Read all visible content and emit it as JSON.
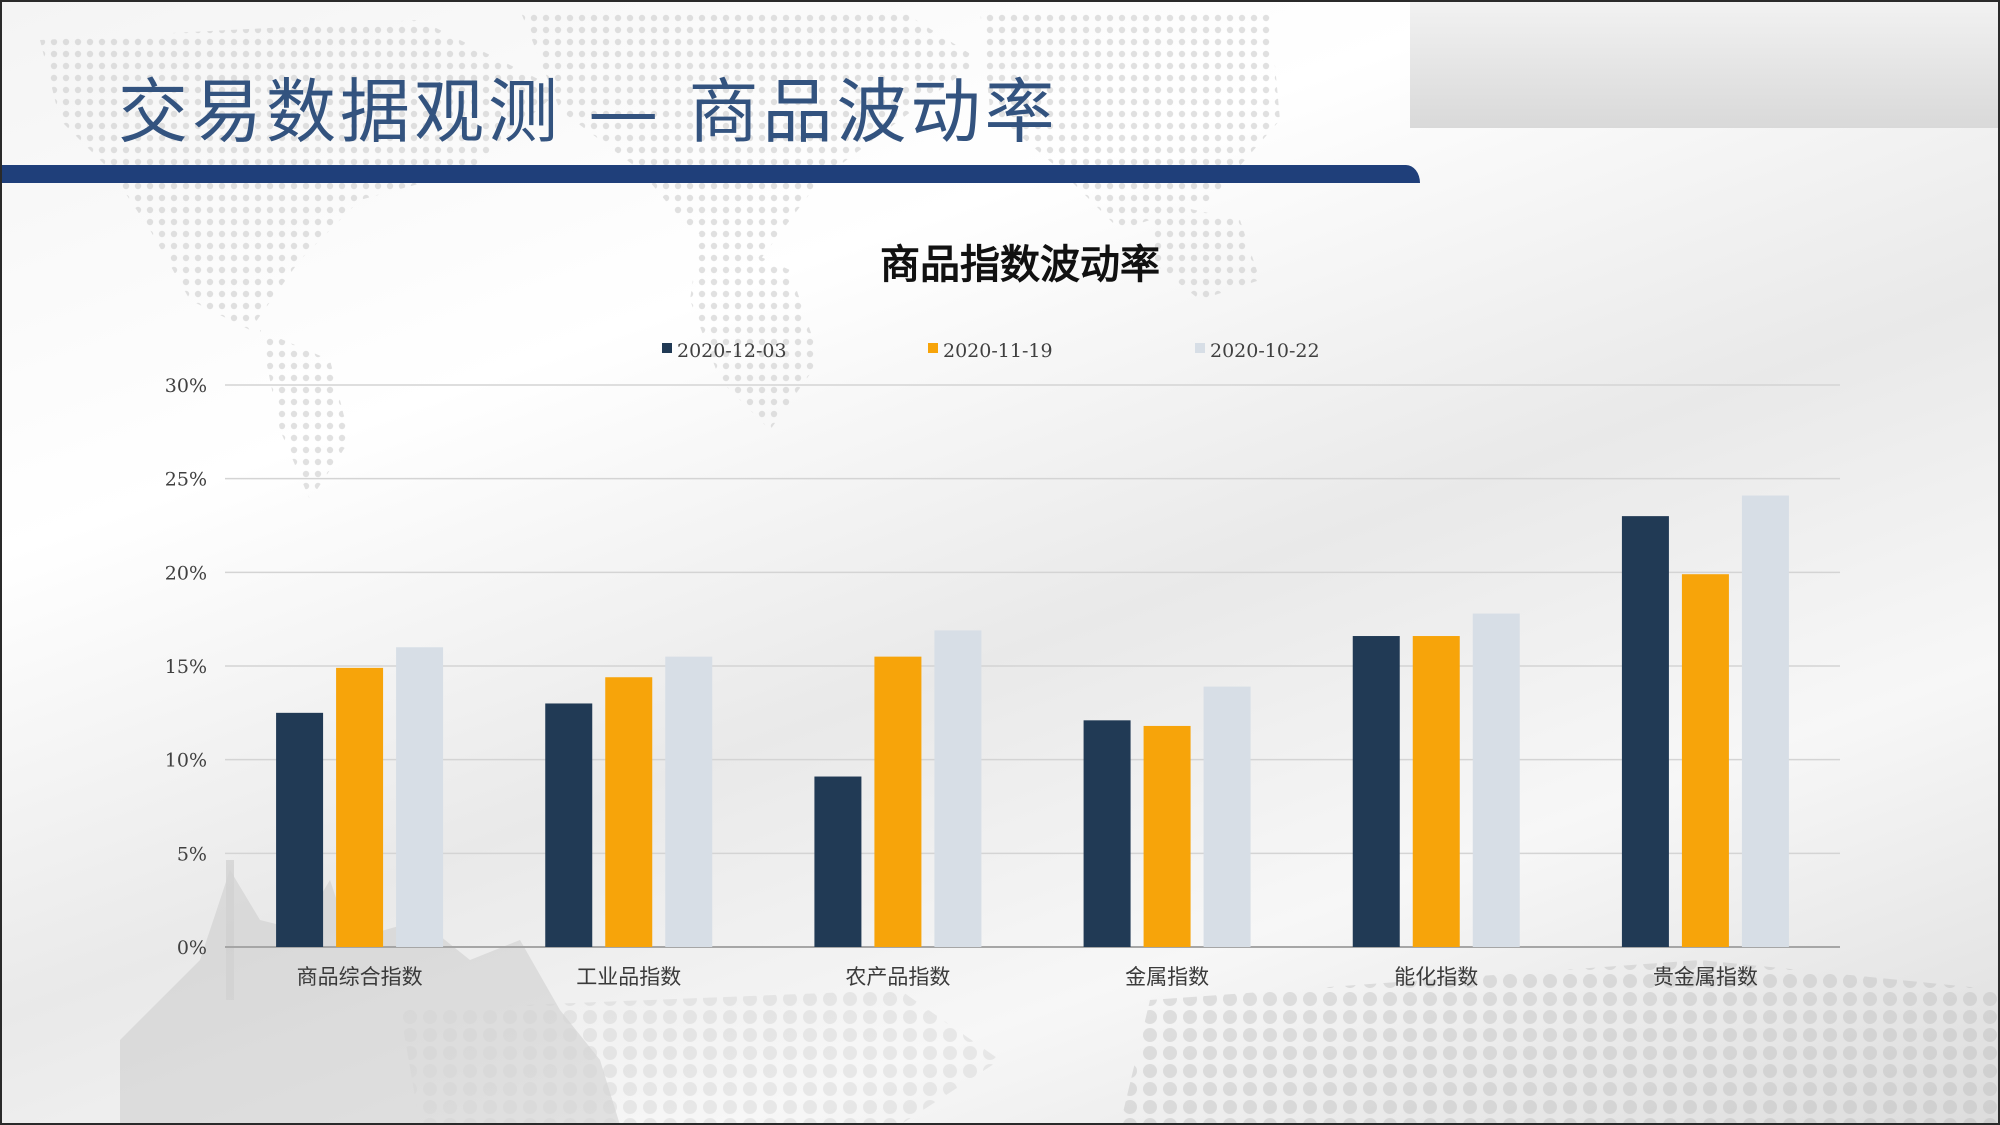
{
  "slide": {
    "title": "交易数据观测  —  商品波动率"
  },
  "chart_data": {
    "type": "bar",
    "title": "商品指数波动率",
    "categories": [
      "商品综合指数",
      "工业品指数",
      "农产品指数",
      "金属指数",
      "能化指数",
      "贵金属指数"
    ],
    "series": [
      {
        "name": "2020-12-03",
        "color": "#213a55",
        "values": [
          12.5,
          13.0,
          9.1,
          12.1,
          16.6,
          23.0
        ]
      },
      {
        "name": "2020-11-19",
        "color": "#f7a40a",
        "values": [
          14.9,
          14.4,
          15.5,
          11.8,
          16.6,
          19.9
        ]
      },
      {
        "name": "2020-10-22",
        "color": "#d7dee6",
        "values": [
          16.0,
          15.5,
          16.9,
          13.9,
          17.8,
          24.1
        ]
      }
    ],
    "y_ticks": [
      "0%",
      "5%",
      "10%",
      "15%",
      "20%",
      "25%",
      "30%"
    ],
    "ylim": [
      0,
      30
    ],
    "grid": true,
    "legend_position": "top-center",
    "xlabel": "",
    "ylabel": ""
  }
}
